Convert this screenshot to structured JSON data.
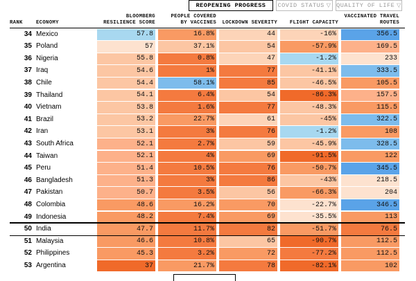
{
  "tabs": [
    {
      "label": "REOPENING PROGRESS",
      "active": true
    },
    {
      "label": "COVID STATUS",
      "active": false
    },
    {
      "label": "QUALITY OF LIFE",
      "active": false
    }
  ],
  "caret_glyph": "▽",
  "headers": {
    "rank": "RANK",
    "economy": "ECONOMY",
    "resilience_1": "BLOOMBERG",
    "resilience_2": "RESILIENCE SCORE",
    "vaccines_1": "PEOPLE COVERED",
    "vaccines_2": "BY VACCINES",
    "lockdown": "LOCKDOWN SEVERITY",
    "flight": "FLIGHT CAPACITY",
    "routes_1": "VACCINATED TRAVEL",
    "routes_2": "ROUTES"
  },
  "rows": [
    {
      "rank": "34",
      "economy": "Mexico",
      "score": "57.8",
      "vaccines": "16.8%",
      "lockdown": "44",
      "flight": "-16%",
      "routes": "356.5",
      "c": [
        "#a8d8f0",
        "#f99a63",
        "#fdd4b8",
        "#fdd4b8",
        "#5aa3e8"
      ]
    },
    {
      "rank": "35",
      "economy": "Poland",
      "score": "57",
      "vaccines": "37.1%",
      "lockdown": "54",
      "flight": "-57.9%",
      "routes": "169.5",
      "c": [
        "#fde2cf",
        "#fcc6a3",
        "#fcc6a3",
        "#f99a63",
        "#fdb18a"
      ]
    },
    {
      "rank": "36",
      "economy": "Nigeria",
      "score": "55.8",
      "vaccines": "0.8%",
      "lockdown": "47",
      "flight": "-1.2%",
      "routes": "233",
      "c": [
        "#fcc6a3",
        "#f47a3f",
        "#fdd4b8",
        "#a8d8f0",
        "#fde2cf"
      ]
    },
    {
      "rank": "37",
      "economy": "Iraq",
      "score": "54.6",
      "vaccines": "1%",
      "lockdown": "77",
      "flight": "-41.1%",
      "routes": "333.5",
      "c": [
        "#fcc6a3",
        "#f47a3f",
        "#f47a3f",
        "#fcc6a3",
        "#7dbcec"
      ]
    },
    {
      "rank": "38",
      "economy": "Chile",
      "score": "54.4",
      "vaccines": "58.1%",
      "lockdown": "85",
      "flight": "-46.5%",
      "routes": "105.5",
      "c": [
        "#fcc6a3",
        "#7dbcec",
        "#f47a3f",
        "#fcc6a3",
        "#f99a63"
      ]
    },
    {
      "rank": "39",
      "economy": "Thailand",
      "score": "54.1",
      "vaccines": "6.4%",
      "lockdown": "54",
      "flight": "-86.3%",
      "routes": "157.5",
      "c": [
        "#fcc6a3",
        "#f47a3f",
        "#fcc6a3",
        "#f06a2a",
        "#fdb18a"
      ]
    },
    {
      "rank": "40",
      "economy": "Vietnam",
      "score": "53.8",
      "vaccines": "1.6%",
      "lockdown": "77",
      "flight": "-48.3%",
      "routes": "115.5",
      "c": [
        "#fcc6a3",
        "#f47a3f",
        "#f47a3f",
        "#fcc6a3",
        "#f99a63"
      ]
    },
    {
      "rank": "41",
      "economy": "Brazil",
      "score": "53.2",
      "vaccines": "22.7%",
      "lockdown": "61",
      "flight": "-45%",
      "routes": "322.5",
      "c": [
        "#fcc6a3",
        "#f99a63",
        "#fdd4b8",
        "#fcc6a3",
        "#7dbcec"
      ]
    },
    {
      "rank": "42",
      "economy": "Iran",
      "score": "53.1",
      "vaccines": "3%",
      "lockdown": "76",
      "flight": "-1.2%",
      "routes": "108",
      "c": [
        "#fcc6a3",
        "#f47a3f",
        "#f47a3f",
        "#a8d8f0",
        "#f99a63"
      ]
    },
    {
      "rank": "43",
      "economy": "South Africa",
      "score": "52.1",
      "vaccines": "2.7%",
      "lockdown": "59",
      "flight": "-45.9%",
      "routes": "328.5",
      "c": [
        "#fdb18a",
        "#f47a3f",
        "#fcc6a3",
        "#fcc6a3",
        "#7dbcec"
      ]
    },
    {
      "rank": "44",
      "economy": "Taiwan",
      "score": "52.1",
      "vaccines": "4%",
      "lockdown": "69",
      "flight": "-91.5%",
      "routes": "122",
      "c": [
        "#fdb18a",
        "#f47a3f",
        "#f99a63",
        "#f06a2a",
        "#f99a63"
      ]
    },
    {
      "rank": "45",
      "economy": "Peru",
      "score": "51.4",
      "vaccines": "10.5%",
      "lockdown": "76",
      "flight": "-50.7%",
      "routes": "345.5",
      "c": [
        "#fdb18a",
        "#f47a3f",
        "#f47a3f",
        "#f99a63",
        "#5aa3e8"
      ]
    },
    {
      "rank": "46",
      "economy": "Bangladesh",
      "score": "51.3",
      "vaccines": "3%",
      "lockdown": "86",
      "flight": "-43%",
      "routes": "218.5",
      "c": [
        "#fdb18a",
        "#f47a3f",
        "#f47a3f",
        "#fcc6a3",
        "#fde2cf"
      ]
    },
    {
      "rank": "47",
      "economy": "Pakistan",
      "score": "50.7",
      "vaccines": "3.5%",
      "lockdown": "56",
      "flight": "-66.3%",
      "routes": "204",
      "c": [
        "#fdb18a",
        "#f47a3f",
        "#fcc6a3",
        "#f99a63",
        "#fde2cf"
      ]
    },
    {
      "rank": "48",
      "economy": "Colombia",
      "score": "48.6",
      "vaccines": "16.2%",
      "lockdown": "70",
      "flight": "-22.7%",
      "routes": "346.5",
      "c": [
        "#f99a63",
        "#f99a63",
        "#f99a63",
        "#fde2cf",
        "#5aa3e8"
      ]
    },
    {
      "rank": "49",
      "economy": "Indonesia",
      "score": "48.2",
      "vaccines": "7.4%",
      "lockdown": "69",
      "flight": "-35.5%",
      "routes": "113",
      "c": [
        "#f99a63",
        "#f47a3f",
        "#f99a63",
        "#fde2cf",
        "#f99a63"
      ]
    },
    {
      "rank": "50",
      "economy": "India",
      "score": "47.7",
      "vaccines": "11.7%",
      "lockdown": "82",
      "flight": "-51.7%",
      "routes": "76.5",
      "c": [
        "#f99a63",
        "#f47a3f",
        "#f47a3f",
        "#f99a63",
        "#f47a3f"
      ]
    },
    {
      "rank": "51",
      "economy": "Malaysia",
      "score": "46.6",
      "vaccines": "10.8%",
      "lockdown": "65",
      "flight": "-90.7%",
      "routes": "112.5",
      "c": [
        "#f99a63",
        "#f47a3f",
        "#fcc6a3",
        "#f06a2a",
        "#f99a63"
      ]
    },
    {
      "rank": "52",
      "economy": "Philippines",
      "score": "45.3",
      "vaccines": "3.2%",
      "lockdown": "72",
      "flight": "-77.2%",
      "routes": "112.5",
      "c": [
        "#f99a63",
        "#f47a3f",
        "#f99a63",
        "#f47a3f",
        "#f99a63"
      ]
    },
    {
      "rank": "53",
      "economy": "Argentina",
      "score": "37",
      "vaccines": "21.7%",
      "lockdown": "78",
      "flight": "-82.1%",
      "routes": "102",
      "c": [
        "#f06a2a",
        "#f99a63",
        "#f47a3f",
        "#f06a2a",
        "#f99a63"
      ]
    }
  ],
  "highlighted_rank": "50"
}
